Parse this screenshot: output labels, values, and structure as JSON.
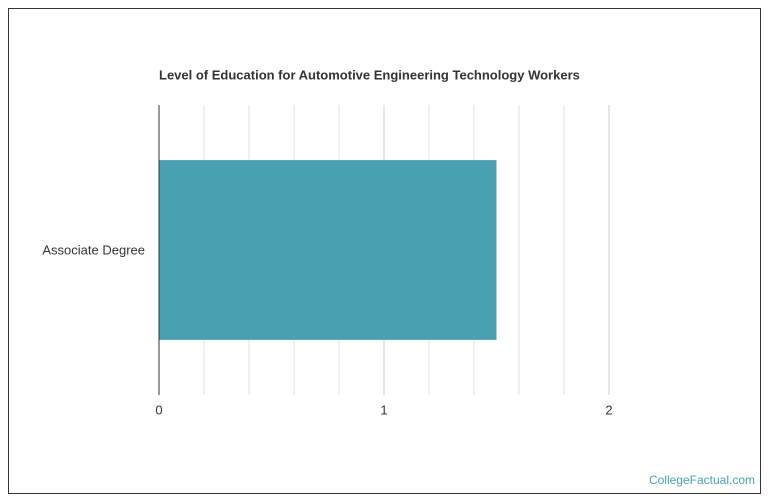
{
  "chart_data": {
    "type": "hbar",
    "title": "Level of Education for Automotive Engineering Technology Workers",
    "categories": [
      "Associate Degree"
    ],
    "values": [
      1.5
    ],
    "color": "#4aa0b3",
    "xlim": [
      0,
      2
    ],
    "xticks": [
      0,
      1,
      2
    ],
    "minor_grid": [
      0.2,
      0.4,
      0.6,
      0.8,
      1.2,
      1.4,
      1.6,
      1.8
    ],
    "grid": true,
    "watermark": "CollegeFactual.com"
  }
}
